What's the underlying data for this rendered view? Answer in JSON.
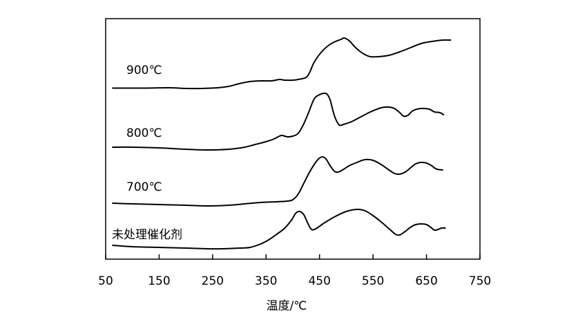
{
  "chart_data": {
    "type": "line",
    "title": "",
    "xlabel": "温度/℃",
    "ylabel": "",
    "xlim": [
      50,
      750
    ],
    "x_ticks": [
      "50",
      "150",
      "250",
      "350",
      "450",
      "550",
      "650",
      "750"
    ],
    "grid": false,
    "legend": "none",
    "colors": {
      "line": "#000000",
      "frame": "#000000",
      "background": "#ffffff"
    },
    "series": [
      {
        "name": "900℃",
        "points": [
          [
            63,
            127.5
          ],
          [
            120,
            127.5
          ],
          [
            170,
            127
          ],
          [
            200,
            128
          ],
          [
            230,
            128
          ],
          [
            260,
            127
          ],
          [
            280,
            125
          ],
          [
            300,
            121
          ],
          [
            320,
            118
          ],
          [
            340,
            117
          ],
          [
            360,
            117
          ],
          [
            375,
            115
          ],
          [
            385,
            116
          ],
          [
            400,
            116
          ],
          [
            410,
            115
          ],
          [
            425,
            112
          ],
          [
            432,
            104
          ],
          [
            440,
            90
          ],
          [
            455,
            74
          ],
          [
            470,
            64
          ],
          [
            480,
            60
          ],
          [
            490,
            57
          ],
          [
            495,
            55
          ],
          [
            500,
            56
          ],
          [
            507,
            60
          ],
          [
            515,
            67
          ],
          [
            525,
            74
          ],
          [
            535,
            79
          ],
          [
            545,
            82
          ],
          [
            560,
            82
          ],
          [
            580,
            80
          ],
          [
            600,
            75
          ],
          [
            620,
            69
          ],
          [
            640,
            63
          ],
          [
            660,
            60
          ],
          [
            680,
            58
          ],
          [
            695,
            58
          ]
        ]
      },
      {
        "name": "800℃",
        "points": [
          [
            63,
            213
          ],
          [
            100,
            213
          ],
          [
            150,
            214
          ],
          [
            200,
            216
          ],
          [
            240,
            217
          ],
          [
            280,
            216
          ],
          [
            310,
            213
          ],
          [
            330,
            209
          ],
          [
            350,
            205
          ],
          [
            365,
            201
          ],
          [
            375,
            197
          ],
          [
            380,
            196
          ],
          [
            390,
            198
          ],
          [
            400,
            197
          ],
          [
            410,
            193
          ],
          [
            420,
            180
          ],
          [
            430,
            162
          ],
          [
            440,
            143
          ],
          [
            450,
            137
          ],
          [
            460,
            135
          ],
          [
            465,
            137
          ],
          [
            470,
            145
          ],
          [
            475,
            160
          ],
          [
            480,
            172
          ],
          [
            487,
            181
          ],
          [
            495,
            180
          ],
          [
            510,
            176
          ],
          [
            525,
            170
          ],
          [
            545,
            162
          ],
          [
            565,
            156
          ],
          [
            580,
            155
          ],
          [
            590,
            157
          ],
          [
            600,
            163
          ],
          [
            607,
            168
          ],
          [
            615,
            167
          ],
          [
            625,
            160
          ],
          [
            640,
            157
          ],
          [
            655,
            158
          ],
          [
            665,
            162
          ],
          [
            675,
            163
          ],
          [
            682,
            166
          ]
        ]
      },
      {
        "name": "700℃",
        "points": [
          [
            63,
            294
          ],
          [
            100,
            295
          ],
          [
            150,
            296
          ],
          [
            200,
            297
          ],
          [
            240,
            298
          ],
          [
            280,
            297
          ],
          [
            310,
            295
          ],
          [
            340,
            293
          ],
          [
            370,
            292
          ],
          [
            390,
            291
          ],
          [
            400,
            289
          ],
          [
            410,
            281
          ],
          [
            420,
            266
          ],
          [
            430,
            251
          ],
          [
            440,
            238
          ],
          [
            448,
            230
          ],
          [
            455,
            227
          ],
          [
            462,
            230
          ],
          [
            470,
            240
          ],
          [
            478,
            248
          ],
          [
            485,
            249
          ],
          [
            495,
            245
          ],
          [
            505,
            240
          ],
          [
            520,
            235
          ],
          [
            535,
            231
          ],
          [
            550,
            232
          ],
          [
            565,
            238
          ],
          [
            580,
            246
          ],
          [
            590,
            251
          ],
          [
            600,
            252
          ],
          [
            610,
            249
          ],
          [
            620,
            243
          ],
          [
            630,
            237
          ],
          [
            640,
            235
          ],
          [
            650,
            236
          ],
          [
            660,
            240
          ],
          [
            665,
            243
          ],
          [
            670,
            245
          ],
          [
            680,
            246
          ]
        ]
      },
      {
        "name": "未处理催化剂",
        "points": [
          [
            63,
            355
          ],
          [
            100,
            357
          ],
          [
            150,
            358
          ],
          [
            200,
            359
          ],
          [
            240,
            360
          ],
          [
            270,
            360
          ],
          [
            300,
            359
          ],
          [
            320,
            358
          ],
          [
            340,
            353
          ],
          [
            355,
            347
          ],
          [
            370,
            339
          ],
          [
            385,
            330
          ],
          [
            398,
            318
          ],
          [
            405,
            309
          ],
          [
            412,
            306
          ],
          [
            420,
            310
          ],
          [
            428,
            323
          ],
          [
            435,
            332
          ],
          [
            443,
            331
          ],
          [
            460,
            322
          ],
          [
            480,
            313
          ],
          [
            500,
            306
          ],
          [
            520,
            303
          ],
          [
            535,
            305
          ],
          [
            550,
            312
          ],
          [
            565,
            321
          ],
          [
            580,
            331
          ],
          [
            592,
            339
          ],
          [
            600,
            340
          ],
          [
            610,
            335
          ],
          [
            620,
            329
          ],
          [
            630,
            325
          ],
          [
            640,
            324
          ],
          [
            650,
            325
          ],
          [
            658,
            329
          ],
          [
            665,
            333
          ],
          [
            672,
            332
          ],
          [
            678,
            330
          ],
          [
            685,
            330
          ]
        ]
      }
    ]
  }
}
